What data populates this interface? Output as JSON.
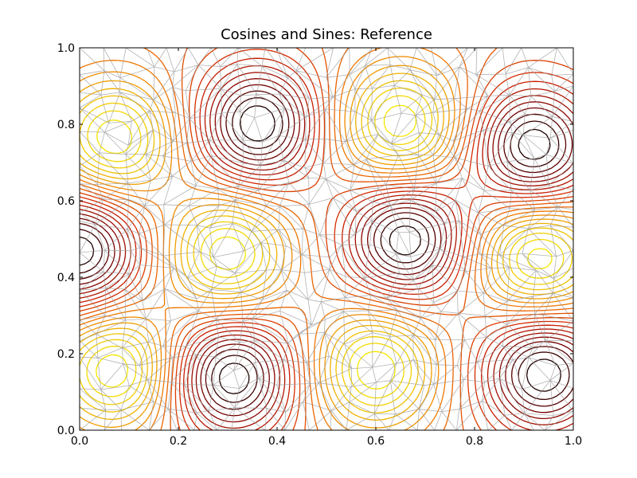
{
  "chart_data": {
    "type": "contour",
    "title": "Cosines and Sines: Reference",
    "xlabel": "",
    "ylabel": "",
    "xlim": [
      0.0,
      1.0
    ],
    "ylim": [
      0.0,
      1.0
    ],
    "x_ticks": [
      "0.0",
      "0.2",
      "0.4",
      "0.6",
      "0.8",
      "1.0"
    ],
    "y_ticks": [
      "0.0",
      "0.2",
      "0.4",
      "0.6",
      "0.8",
      "1.0"
    ],
    "colormap": "hot",
    "overlay": "unstructured triangular mesh (gray)",
    "grid": false,
    "legend": false,
    "colors": {
      "mesh": "#9a9a9a",
      "frame": "#000000",
      "cmap_stops": [
        "#000000",
        "#7a0000",
        "#d02000",
        "#f07000",
        "#f0c000",
        "#f7f000"
      ]
    },
    "contour_features": [
      {
        "kind": "maximum",
        "x": 0.0,
        "y": 0.47
      },
      {
        "kind": "maximum",
        "x": 0.66,
        "y": 0.5
      },
      {
        "kind": "maximum",
        "x": 0.31,
        "y": 0.14
      },
      {
        "kind": "maximum",
        "x": 0.36,
        "y": 0.8
      },
      {
        "kind": "maximum",
        "x": 0.92,
        "y": 0.74
      },
      {
        "kind": "maximum",
        "x": 0.94,
        "y": 0.15
      },
      {
        "kind": "minimum",
        "x": 0.3,
        "y": 0.46
      },
      {
        "kind": "minimum",
        "x": 0.6,
        "y": 0.16
      },
      {
        "kind": "minimum",
        "x": 0.07,
        "y": 0.76
      },
      {
        "kind": "minimum",
        "x": 0.65,
        "y": 0.8
      },
      {
        "kind": "minimum",
        "x": 0.93,
        "y": 0.45
      },
      {
        "kind": "minimum",
        "x": 0.07,
        "y": 0.16
      }
    ]
  }
}
